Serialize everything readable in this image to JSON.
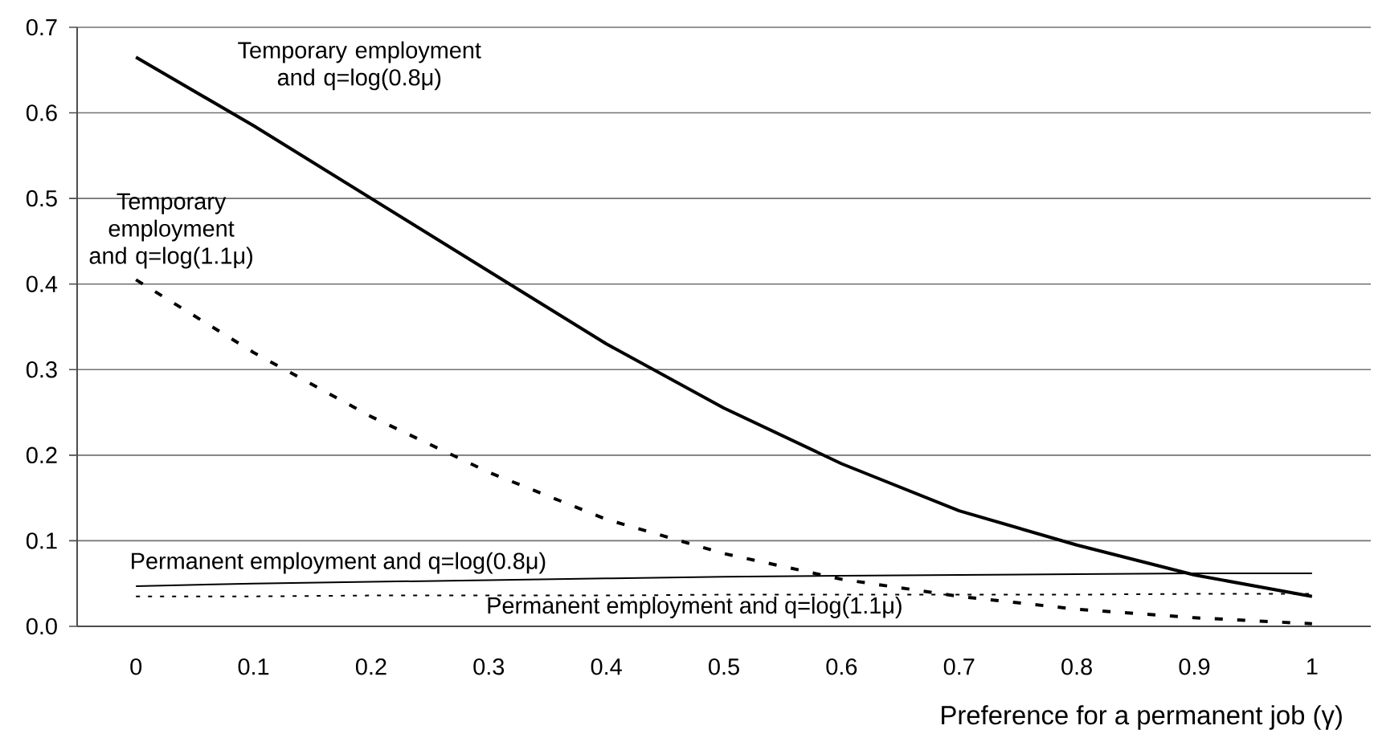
{
  "chart_data": {
    "type": "line",
    "xlabel": "Preference for a permanent job (γ)",
    "categories": [
      "0",
      "0.1",
      "0.2",
      "0.3",
      "0.4",
      "0.5",
      "0.6",
      "0.7",
      "0.8",
      "0.9",
      "1"
    ],
    "series": [
      {
        "name": "Temporary employment and q=log(0.8μ)",
        "color": "#000000",
        "line_style": "solid",
        "values": [
          0.665,
          0.585,
          0.5,
          0.415,
          0.33,
          0.255,
          0.19,
          0.135,
          0.095,
          0.06,
          0.035
        ]
      },
      {
        "name": "Temporary employment and q=log(1.1μ)",
        "color": "#000000",
        "line_style": "dashed",
        "values": [
          0.405,
          0.32,
          0.245,
          0.18,
          0.125,
          0.085,
          0.055,
          0.035,
          0.02,
          0.01,
          0.003
        ]
      },
      {
        "name": "Permanent employment and q=log(0.8μ)",
        "color": "#000000",
        "line_style": "solid",
        "values": [
          0.047,
          0.05,
          0.052,
          0.054,
          0.056,
          0.058,
          0.059,
          0.06,
          0.061,
          0.062,
          0.062
        ]
      },
      {
        "name": "Permanent employment and q=log(1.1μ)",
        "color": "#000000",
        "line_style": "dotted",
        "values": [
          0.035,
          0.035,
          0.036,
          0.036,
          0.036,
          0.037,
          0.037,
          0.037,
          0.037,
          0.038,
          0.038
        ]
      }
    ],
    "ylim": [
      0,
      0.7
    ],
    "yticks": [
      {
        "value": 0,
        "label": "0.0"
      },
      0.1,
      0.2,
      0.3,
      0.4,
      0.5,
      0.6,
      0.7
    ],
    "grid": "y",
    "legend": false,
    "marker": "none"
  }
}
